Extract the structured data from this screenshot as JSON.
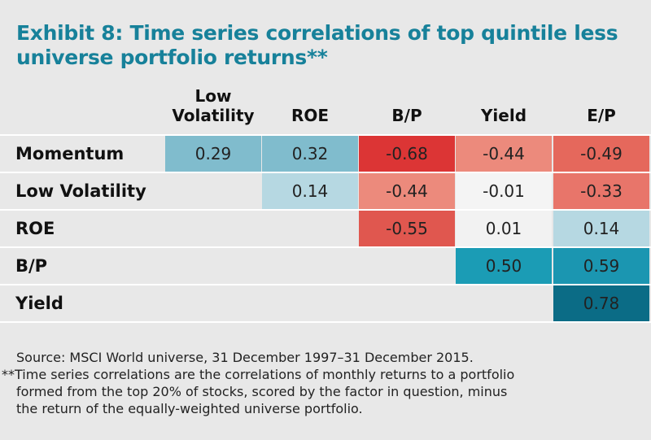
{
  "title_line1": "Exhibit 8: Time series correlations of top quintile less",
  "title_line2": "universe portfolio returns**",
  "chart_data": {
    "type": "heatmap",
    "title": "Exhibit 8: Time series correlations of top quintile less universe portfolio returns**",
    "columns": [
      "Low Volatility",
      "ROE",
      "B/P",
      "Yield",
      "E/P"
    ],
    "column_header_lines": [
      [
        "Low",
        "Volatility"
      ],
      [
        "ROE"
      ],
      [
        "B/P"
      ],
      [
        "Yield"
      ],
      [
        "E/P"
      ]
    ],
    "rows": [
      "Momentum",
      "Low Volatility",
      "ROE",
      "B/P",
      "Yield"
    ],
    "values": [
      [
        0.29,
        0.32,
        -0.68,
        -0.44,
        -0.49
      ],
      [
        null,
        0.14,
        -0.44,
        -0.01,
        -0.33
      ],
      [
        null,
        null,
        -0.55,
        0.01,
        0.14
      ],
      [
        null,
        null,
        null,
        0.5,
        0.59
      ],
      [
        null,
        null,
        null,
        null,
        0.78
      ]
    ],
    "value_labels": [
      [
        "0.29",
        "0.32",
        "-0.68",
        "-0.44",
        "-0.49"
      ],
      [
        null,
        "0.14",
        "-0.44",
        "-0.01",
        "-0.33"
      ],
      [
        null,
        null,
        "-0.55",
        "0.01",
        "0.14"
      ],
      [
        null,
        null,
        null,
        "0.50",
        "0.59"
      ],
      [
        null,
        null,
        null,
        null,
        "0.78"
      ]
    ],
    "cell_colors": [
      [
        "#80bccd",
        "#80bccd",
        "#dc3535",
        "#ec8a7c",
        "#e5685c"
      ],
      [
        null,
        "#b6d8e2",
        "#ec8a7c",
        "#f4f4f4",
        "#e8756a"
      ],
      [
        null,
        null,
        "#e0574f",
        "#f2f2f2",
        "#b6d8e2"
      ],
      [
        null,
        null,
        null,
        "#1b9cb5",
        "#1b96b1"
      ],
      [
        null,
        null,
        null,
        null,
        "#0b6c86"
      ]
    ]
  },
  "footnotes": {
    "source": "Source: MSCI World universe, 31 December 1997–31 December 2015.",
    "note_line1": "**Time series correlations are the correlations of monthly returns to a portfolio",
    "note_line2": "formed from the top 20% of stocks, scored by the factor in question, minus",
    "note_line3": "the return of the equally-weighted universe portfolio."
  },
  "colors": {
    "title": "#17819a",
    "background": "#e8e8e8",
    "separator": "#ffffff"
  }
}
